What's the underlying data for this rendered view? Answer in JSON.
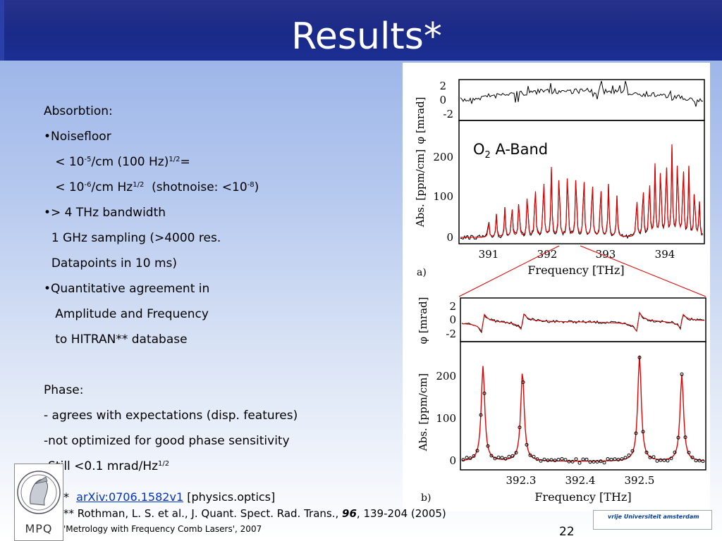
{
  "slide": {
    "title": "Results*",
    "page_number": "22"
  },
  "content": {
    "lines": {
      "absorbtion_heading": "Absorbtion:",
      "noisefloor": "•Noisefloor",
      "nf1_a": "< 10",
      "nf1_sup1": "-5",
      "nf1_b": "/cm (100 Hz)",
      "nf1_sup2": "1/2",
      "nf1_c": "=",
      "nf2_a": "< 10",
      "nf2_sup1": "-6",
      "nf2_b": "/cm Hz",
      "nf2_sup2": "1/2",
      "nf2_c": "  (shotnoise: <10",
      "nf2_sup3": "-8",
      "nf2_d": ")",
      "bandwidth": "•> 4 THz bandwidth",
      "sampling": "1 GHz sampling (>4000 res.",
      "datapoints": "Datapoints in 10 ms)",
      "quant": "•Quantitative agreement in",
      "amp": "Amplitude and Frequency",
      "hitran": "to HITRAN** database",
      "phase_heading": "Phase:",
      "phase1": "- agrees with expectations (disp. features)",
      "phase2": "-not optimized for good phase sensitivity",
      "phase3_a": "-Still <0.1 mrad/Hz",
      "phase3_sup": "1/2"
    }
  },
  "figure": {
    "annotation_o2": "O",
    "annotation_o2_sub": "2",
    "annotation_band": " A-Band",
    "panel_a": {
      "label": "a)",
      "phase_axis_label": "φ [mrad]",
      "abs_axis_label": "Abs. [ppm/cm]",
      "x_axis_label": "Frequency [THz]",
      "phase_ticks": [
        "2",
        "0",
        "-2"
      ],
      "abs_ticks": [
        "200",
        "100",
        "0"
      ],
      "x_ticks": [
        "391",
        "392",
        "393",
        "394"
      ]
    },
    "panel_b": {
      "label": "b)",
      "phase_axis_label": "φ [mrad]",
      "abs_axis_label": "Abs. [ppm/cm]",
      "x_axis_label": "Frequency [THz]",
      "phase_ticks": [
        "2",
        "0",
        "-2"
      ],
      "abs_ticks": [
        "200",
        "100",
        "0"
      ],
      "x_ticks": [
        "392.3",
        "392.4",
        "392.5"
      ]
    }
  },
  "footnotes": {
    "fn1_star": "*  ",
    "fn1_link": "arXiv:0706.1582v1",
    "fn1_rest": " [physics.optics]",
    "fn2_a": "** Rothman, L. S. et al., J. Quant. Spect. Rad. Trans., ",
    "fn2_vol": "96",
    "fn2_b": ", 139-204 (2005)",
    "fn3": "'Metrology with Frequency Comb Lasers', 2007"
  },
  "logos": {
    "mpq_text": "MPQ",
    "vu_text": "vrije Universiteit  amsterdam"
  },
  "colors": {
    "title_bar": "#1a2a88",
    "fit_red": "#e00000",
    "link_blue": "#0033cc"
  }
}
